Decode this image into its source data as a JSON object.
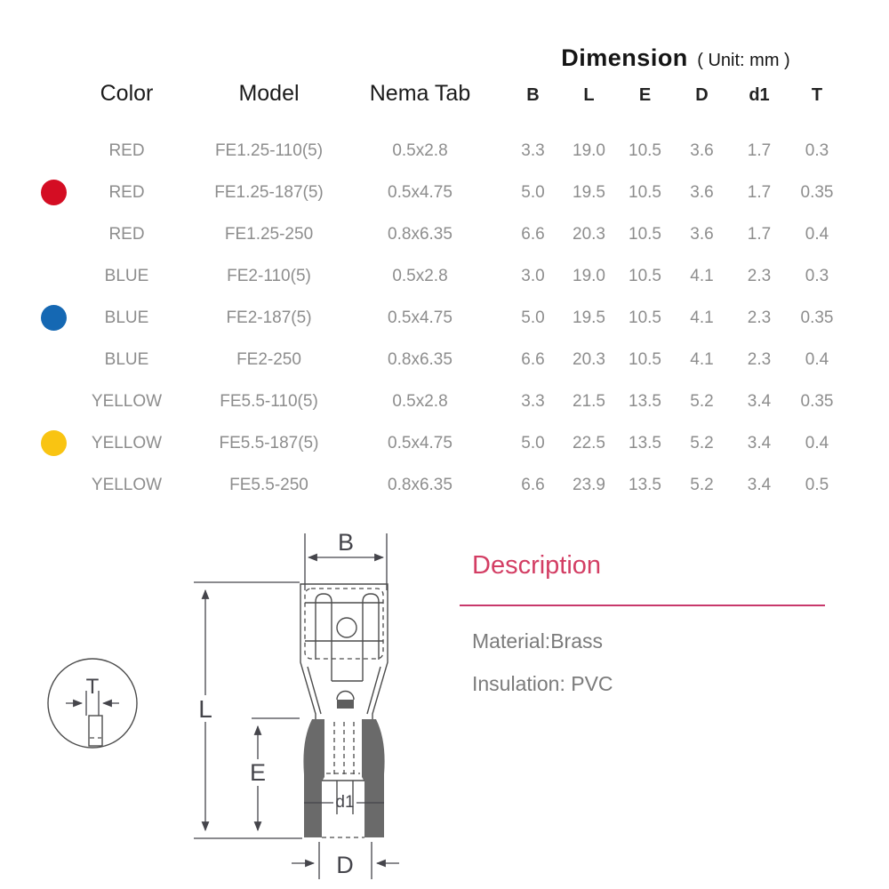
{
  "table": {
    "headers": {
      "color": "Color",
      "model": "Model",
      "nema_tab": "Nema Tab"
    },
    "dimension_header": {
      "title": "Dimension",
      "unit": "( Unit: mm )"
    },
    "dim_columns": [
      "B",
      "L",
      "E",
      "D",
      "d1",
      "T"
    ],
    "rows": [
      {
        "dot": "",
        "color": "RED",
        "model": "FE1.25-110(5)",
        "nema_tab": "0.5x2.8",
        "dims": [
          "3.3",
          "19.0",
          "10.5",
          "3.6",
          "1.7",
          "0.3"
        ]
      },
      {
        "dot": "red",
        "color": "RED",
        "model": "FE1.25-187(5)",
        "nema_tab": "0.5x4.75",
        "dims": [
          "5.0",
          "19.5",
          "10.5",
          "3.6",
          "1.7",
          "0.35"
        ]
      },
      {
        "dot": "",
        "color": "RED",
        "model": "FE1.25-250",
        "nema_tab": "0.8x6.35",
        "dims": [
          "6.6",
          "20.3",
          "10.5",
          "3.6",
          "1.7",
          "0.4"
        ]
      },
      {
        "dot": "",
        "color": "BLUE",
        "model": "FE2-110(5)",
        "nema_tab": "0.5x2.8",
        "dims": [
          "3.0",
          "19.0",
          "10.5",
          "4.1",
          "2.3",
          "0.3"
        ]
      },
      {
        "dot": "blue",
        "color": "BLUE",
        "model": "FE2-187(5)",
        "nema_tab": "0.5x4.75",
        "dims": [
          "5.0",
          "19.5",
          "10.5",
          "4.1",
          "2.3",
          "0.35"
        ]
      },
      {
        "dot": "",
        "color": "BLUE",
        "model": "FE2-250",
        "nema_tab": "0.8x6.35",
        "dims": [
          "6.6",
          "20.3",
          "10.5",
          "4.1",
          "2.3",
          "0.4"
        ]
      },
      {
        "dot": "",
        "color": "YELLOW",
        "model": "FE5.5-110(5)",
        "nema_tab": "0.5x2.8",
        "dims": [
          "3.3",
          "21.5",
          "13.5",
          "5.2",
          "3.4",
          "0.35"
        ]
      },
      {
        "dot": "yellow",
        "color": "YELLOW",
        "model": "FE5.5-187(5)",
        "nema_tab": "0.5x4.75",
        "dims": [
          "5.0",
          "22.5",
          "13.5",
          "5.2",
          "3.4",
          "0.4"
        ]
      },
      {
        "dot": "",
        "color": "YELLOW",
        "model": "FE5.5-250",
        "nema_tab": "0.8x6.35",
        "dims": [
          "6.6",
          "23.9",
          "13.5",
          "5.2",
          "3.4",
          "0.5"
        ]
      }
    ]
  },
  "dot_colors": {
    "red": "#d40d23",
    "blue": "#1568b3",
    "yellow": "#f9c412"
  },
  "diagram": {
    "labels": {
      "B": "B",
      "L": "L",
      "E": "E",
      "D": "D",
      "d1": "d1",
      "T": "T"
    }
  },
  "description": {
    "title": "Description",
    "material": "Material:Brass",
    "insulation": "Insulation: PVC",
    "accent": "#d33e64",
    "line_color": "#c8386b"
  }
}
